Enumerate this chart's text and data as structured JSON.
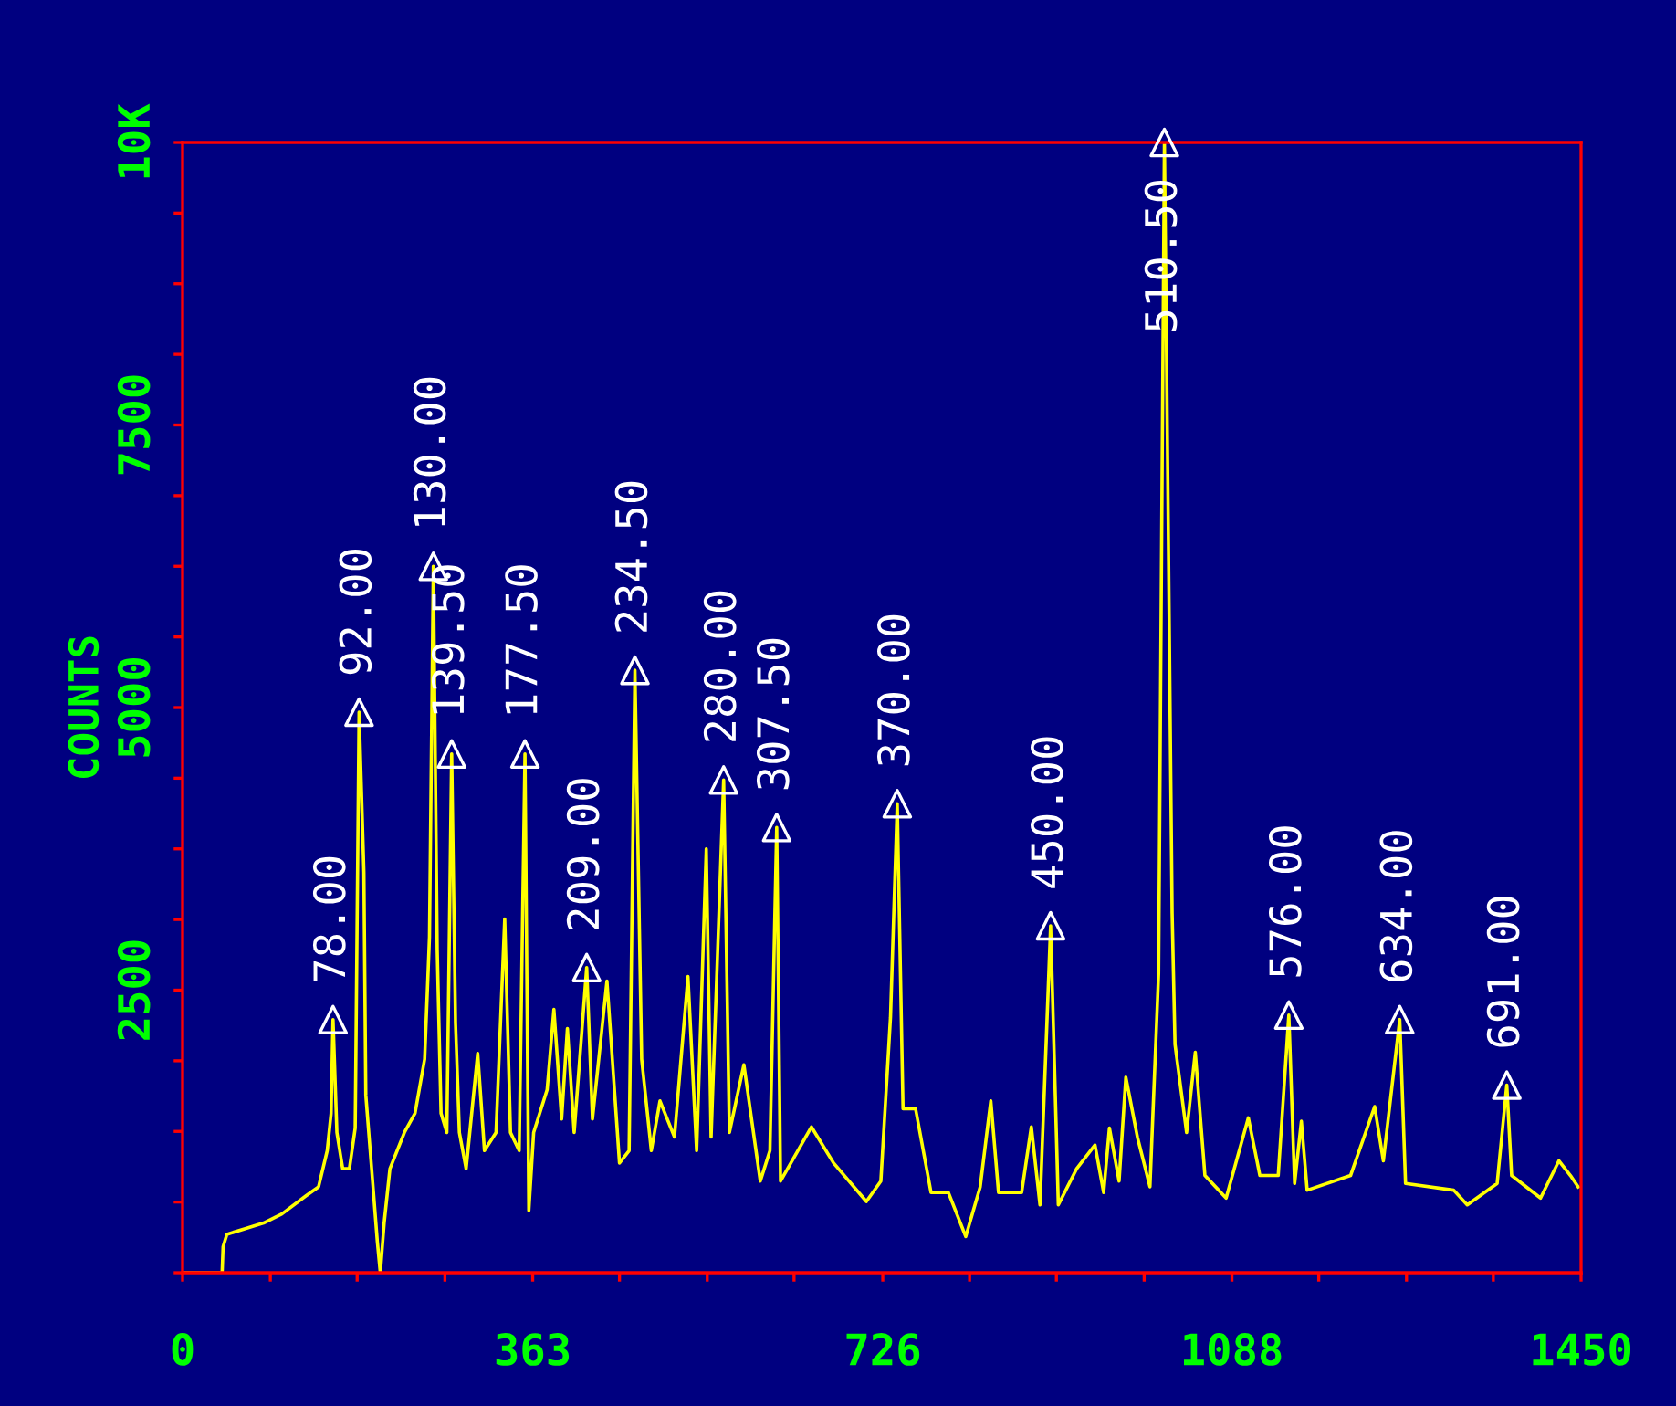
{
  "chart_data": {
    "type": "line",
    "ylabel": "COUNTS",
    "xlim": [
      0,
      1450
    ],
    "ylim": [
      0,
      10000
    ],
    "xticks": [
      0,
      {
        "value": 91,
        "label": null
      },
      {
        "value": 181,
        "label": null
      },
      {
        "value": 272,
        "label": null
      },
      363,
      {
        "value": 453,
        "label": null
      },
      {
        "value": 544,
        "label": null
      },
      {
        "value": 634,
        "label": null
      },
      726,
      {
        "value": 816,
        "label": null
      },
      {
        "value": 906,
        "label": null
      },
      {
        "value": 997,
        "label": null
      },
      1088,
      {
        "value": 1178,
        "label": null
      },
      {
        "value": 1269,
        "label": null
      },
      {
        "value": 1359,
        "label": null
      },
      1450
    ],
    "yticks": [
      {
        "value": 0,
        "label": null
      },
      {
        "value": 625,
        "label": null
      },
      {
        "value": 1250,
        "label": null
      },
      {
        "value": 1875,
        "label": null
      },
      2500,
      {
        "value": 3125,
        "label": null
      },
      {
        "value": 3750,
        "label": null
      },
      {
        "value": 4375,
        "label": null
      },
      5000,
      {
        "value": 5625,
        "label": null
      },
      {
        "value": 6250,
        "label": null
      },
      {
        "value": 6875,
        "label": null
      },
      7500,
      {
        "value": 8125,
        "label": null
      },
      {
        "value": 8750,
        "label": null
      },
      {
        "value": 9375,
        "label": null
      },
      {
        "value": 10000,
        "label": "10K"
      }
    ],
    "grid": false,
    "series": [
      {
        "color": "#ffff00",
        "line_style": "solid",
        "marker": "none",
        "x": [
          0,
          41,
          42,
          46,
          65,
          84,
          103,
          128,
          141,
          150,
          154,
          156,
          160,
          166,
          173,
          179,
          183,
          188,
          190,
          196,
          202,
          205,
          209,
          215,
          230,
          241,
          251,
          256,
          260,
          264,
          268,
          274,
          279,
          283,
          287,
          294,
          306,
          313,
          325,
          334,
          340,
          349,
          355,
          359,
          364,
          378,
          385,
          393,
          399,
          406,
          419,
          425,
          440,
          453,
          463,
          469,
          476,
          486,
          495,
          510,
          524,
          533,
          543,
          548,
          561,
          567,
          582,
          599,
          609,
          616,
          620,
          652,
          675,
          709,
          724,
          734,
          741,
          747,
          760,
          776,
          794,
          812,
          827,
          838,
          846,
          870,
          880,
          889,
          900,
          908,
          927,
          946,
          955,
          961,
          971,
          978,
          990,
          1003,
          1012,
          1018,
          1026,
          1029,
          1041,
          1050,
          1060,
          1082,
          1105,
          1117,
          1136,
          1147,
          1153,
          1160,
          1166,
          1211,
          1236,
          1245,
          1262,
          1268,
          1318,
          1332,
          1363,
          1373,
          1378,
          1408,
          1427,
          1439,
          1447
        ],
        "values": [
          0,
          0,
          230,
          340,
          390,
          440,
          520,
          680,
          760,
          1080,
          1410,
          2240,
          1240,
          920,
          920,
          1280,
          4960,
          3540,
          1570,
          920,
          270,
          0,
          440,
          920,
          1240,
          1410,
          1890,
          2970,
          6250,
          2860,
          1410,
          1240,
          4590,
          2210,
          1240,
          920,
          1940,
          1080,
          1240,
          3130,
          1240,
          1080,
          4590,
          550,
          1240,
          1620,
          2330,
          1360,
          2160,
          1240,
          2700,
          1360,
          2580,
          970,
          1080,
          5330,
          1890,
          1080,
          1520,
          1200,
          2620,
          1080,
          3750,
          1200,
          4360,
          1240,
          1840,
          810,
          1080,
          3940,
          810,
          1290,
          970,
          630,
          810,
          2260,
          4150,
          1450,
          1450,
          710,
          710,
          320,
          760,
          1520,
          710,
          710,
          1290,
          600,
          3070,
          600,
          920,
          1130,
          710,
          1280,
          810,
          1730,
          1200,
          760,
          2650,
          10000,
          3180,
          2020,
          1240,
          1950,
          860,
          660,
          1370,
          860,
          860,
          2280,
          790,
          1340,
          730,
          860,
          1470,
          990,
          2240,
          790,
          730,
          600,
          790,
          1660,
          860,
          660,
          990,
          860,
          760
        ]
      },
      {
        "type": "scatter",
        "color": "#ffffff",
        "marker": "triangle",
        "x": [
          156,
          183,
          260,
          279,
          355,
          419,
          469,
          561,
          616,
          741,
          900,
          1018,
          1147,
          1262,
          1373
        ],
        "values": [
          2240,
          4960,
          6250,
          4590,
          4590,
          2700,
          5330,
          4360,
          3940,
          4150,
          3070,
          10000,
          2280,
          2240,
          1660
        ]
      }
    ],
    "annotations": [
      {
        "text": "78.00",
        "x": 156,
        "y": 2240
      },
      {
        "text": "92.00",
        "x": 183,
        "y": 4960
      },
      {
        "text": "130.00",
        "x": 260,
        "y": 6250
      },
      {
        "text": "139.50",
        "x": 279,
        "y": 4590
      },
      {
        "text": "177.50",
        "x": 355,
        "y": 4590
      },
      {
        "text": "209.00",
        "x": 419,
        "y": 2700
      },
      {
        "text": "234.50",
        "x": 469,
        "y": 5330
      },
      {
        "text": "280.00",
        "x": 561,
        "y": 4360
      },
      {
        "text": "307.50",
        "x": 616,
        "y": 3940
      },
      {
        "text": "370.00",
        "x": 741,
        "y": 4150
      },
      {
        "text": "450.00",
        "x": 900,
        "y": 3070
      },
      {
        "text": "510.50",
        "x": 1018,
        "y": 10000
      },
      {
        "text": "576.00",
        "x": 1147,
        "y": 2280
      },
      {
        "text": "634.00",
        "x": 1262,
        "y": 2240
      },
      {
        "text": "691.00",
        "x": 1373,
        "y": 1660
      }
    ]
  }
}
